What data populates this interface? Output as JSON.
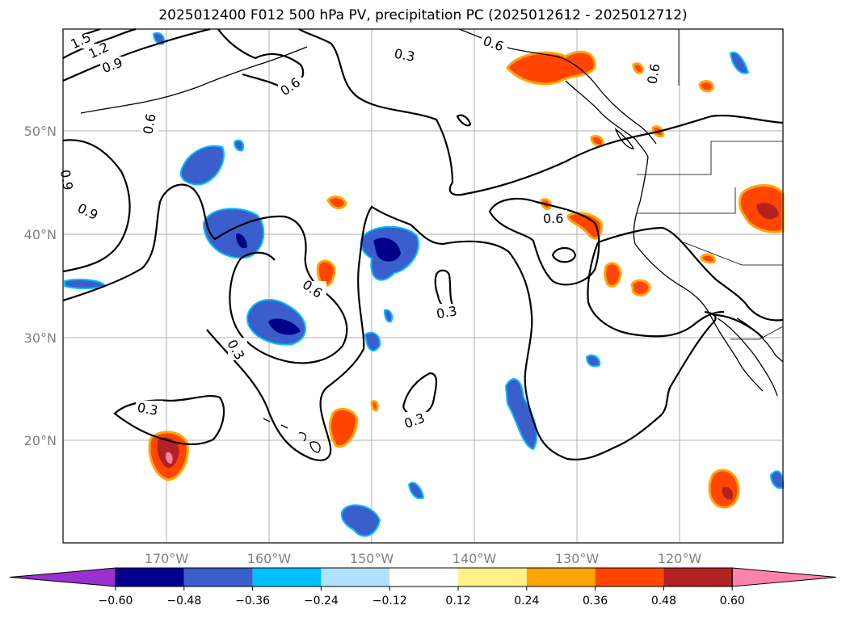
{
  "title": "2025012400 F012 500 hPa PV, precipitation PC (2025012612 - 2025012712)",
  "axes": {
    "lon_labels": [
      "170°W",
      "160°W",
      "150°W",
      "140°W",
      "130°W",
      "120°W"
    ],
    "lat_labels": [
      "50°N",
      "40°N",
      "30°N",
      "20°N"
    ]
  },
  "contour_labels": [
    "1.5",
    "1.2",
    "0.9",
    "0.6",
    "0.9",
    "0.6",
    "0.9",
    "0.6",
    "0.3",
    "0.6",
    "0.6",
    "0.6",
    "0.3",
    "0.3",
    "0.3",
    "0.3"
  ],
  "colorbar": {
    "ticks": [
      "−0.60",
      "−0.48",
      "−0.36",
      "−0.24",
      "−0.12",
      "0.12",
      "0.24",
      "0.36",
      "0.48",
      "0.60"
    ],
    "colors": [
      "#9b30d0",
      "#00008b",
      "#3a5fcd",
      "#00bfff",
      "#b0e2ff",
      "#ffffff",
      "#fff08a",
      "#ffa500",
      "#ff4500",
      "#b22222",
      "#ff82ab",
      "#ff82ab"
    ]
  }
}
